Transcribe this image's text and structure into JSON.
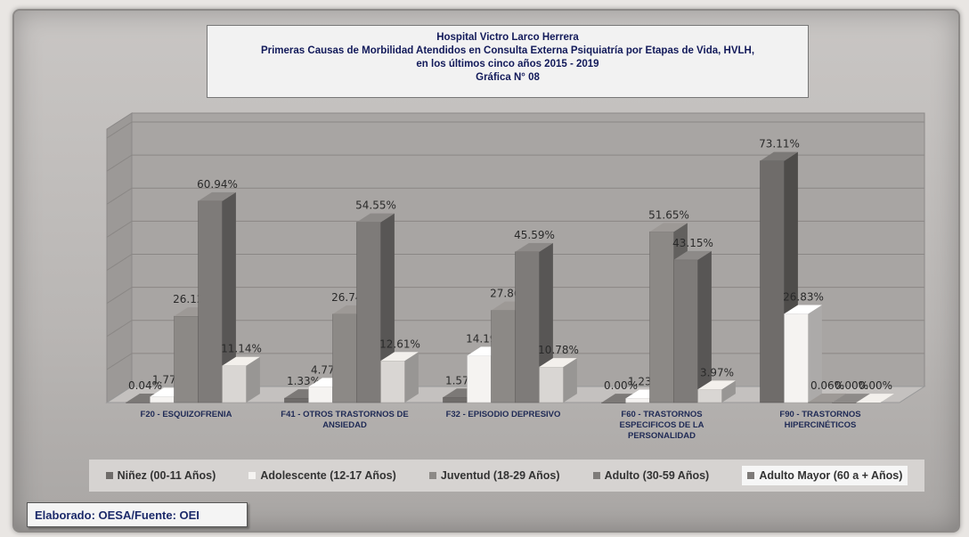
{
  "title_lines": [
    "Hospital Victro Larco Herrera",
    "Primeras Causas de Morbilidad Atendidos en Consulta Externa Psiquiatría por Etapas de Vida, HVLH,",
    "en los últimos cinco años 2015 - 2019",
    "Gráfica N° 08"
  ],
  "footer": "Elaborado: OESA/Fuente: OEI",
  "chart_data": {
    "type": "bar",
    "title": "Hospital Victro Larco Herrera — Primeras Causas de Morbilidad Atendidos en Consulta Externa Psiquiatría por Etapas de Vida, HVLH, en los últimos cinco años 2015 - 2019 — Gráfica N° 08",
    "categories": [
      [
        "F20 - ESQUIZOFRENIA"
      ],
      [
        "F41 - OTROS TRASTORNOS DE",
        "ANSIEDAD"
      ],
      [
        "F32 - EPISODIO DEPRESIVO"
      ],
      [
        "F60 - TRASTORNOS",
        "ESPECIFICOS DE LA",
        "PERSONALIDAD"
      ],
      [
        "F90 - TRASTORNOS",
        "HIPERCINÉTICOS"
      ]
    ],
    "series": [
      {
        "name": "Niñez (00-11 Años)",
        "color": "#6f6c6a",
        "values": [
          0.04,
          1.33,
          1.57,
          0.0,
          73.11
        ],
        "labels": [
          "0.04%",
          "1.33%",
          "1.57%",
          "0.00%",
          "73.11%"
        ]
      },
      {
        "name": "Adolescente (12-17 Años)",
        "color": "#f5f3f1",
        "values": [
          1.77,
          4.77,
          14.19,
          1.23,
          26.83
        ],
        "labels": [
          "1.77%",
          "4.77%",
          "14.19%",
          "1.23%",
          "26.83%"
        ]
      },
      {
        "name": "Juventud (18-29 Años)",
        "color": "#8c8986",
        "values": [
          26.12,
          26.74,
          27.86,
          51.65,
          0.06
        ],
        "labels": [
          "26.12%",
          "26.74%",
          "27.86%",
          "51.65%",
          "0.06%"
        ]
      },
      {
        "name": "Adulto (30-59 Años)",
        "color": "#7e7b79",
        "values": [
          60.94,
          54.55,
          45.59,
          43.15,
          0.0
        ],
        "labels": [
          "60.94%",
          "54.55%",
          "45.59%",
          "43.15%",
          "0.00%"
        ]
      },
      {
        "name": "Adulto Mayor (60 a + Años)",
        "color": "#d9d6d3",
        "values": [
          11.14,
          12.61,
          10.78,
          3.97,
          0.0
        ],
        "labels": [
          "11.14%",
          "12.61%",
          "10.78%",
          "3.97%",
          "0.00%"
        ]
      }
    ],
    "ylim": [
      0,
      80
    ],
    "grid": true,
    "legend_position": "bottom"
  }
}
